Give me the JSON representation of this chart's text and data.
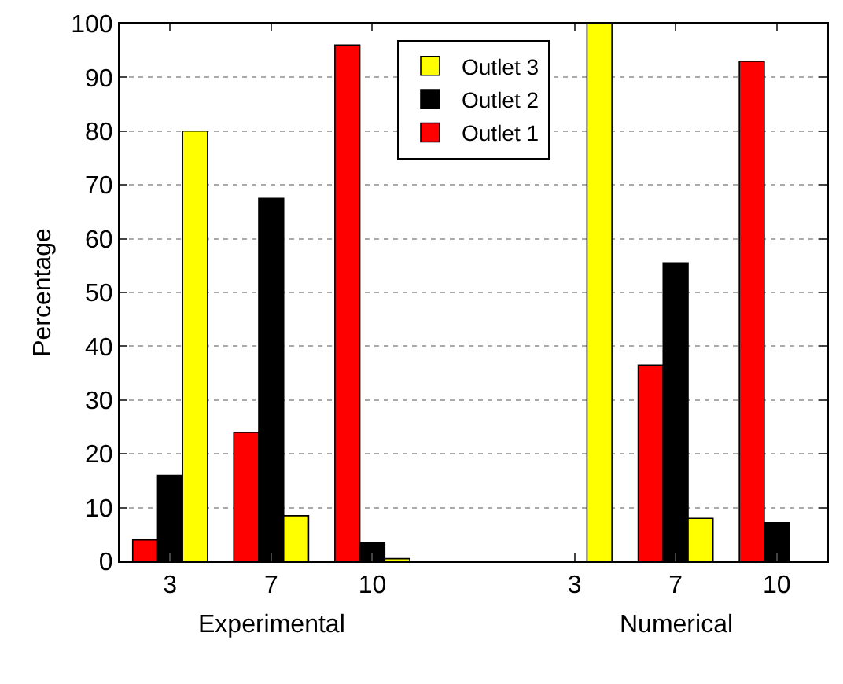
{
  "chart_data": {
    "type": "bar",
    "categories": [
      "3",
      "7",
      "10",
      null,
      "3",
      "7",
      "10"
    ],
    "series": [
      {
        "name": "Outlet 1",
        "color": "#ff0000",
        "values": [
          4,
          24,
          96,
          null,
          null,
          36.5,
          93
        ]
      },
      {
        "name": "Outlet 2",
        "color": "#000000",
        "values": [
          16,
          67.5,
          3.5,
          null,
          null,
          55.5,
          7.2
        ]
      },
      {
        "name": "Outlet 3",
        "color": "#ffff00",
        "values": [
          80,
          8.5,
          0.5,
          null,
          100,
          8,
          null
        ]
      }
    ],
    "ylabel": "Percentage",
    "annotations": [
      "Experimental",
      "Numerical"
    ],
    "ylim": [
      0,
      100
    ],
    "yticks": [
      0,
      10,
      20,
      30,
      40,
      50,
      60,
      70,
      80,
      90,
      100
    ],
    "grid": "y",
    "legend": "top"
  }
}
